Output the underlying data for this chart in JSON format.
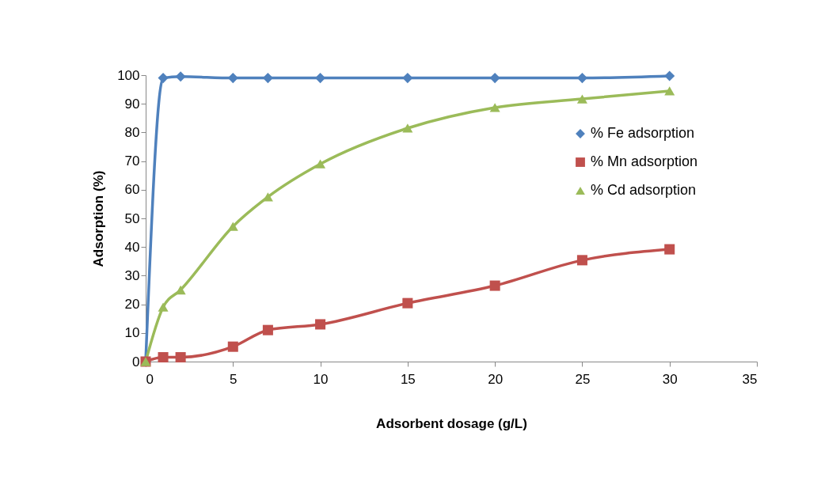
{
  "chart_data": {
    "type": "line",
    "xlabel": "Adsorbent dosage (g/L)",
    "ylabel": "Adsorption (%)",
    "x": [
      0,
      1,
      2,
      5,
      7,
      10,
      15,
      20,
      25,
      30
    ],
    "xlim": [
      0,
      35
    ],
    "xticks": [
      0,
      5,
      10,
      15,
      20,
      25,
      30,
      35
    ],
    "ylim": [
      0,
      100
    ],
    "yticks": [
      0,
      10,
      20,
      30,
      40,
      50,
      60,
      70,
      80,
      90,
      100
    ],
    "grid": false,
    "legend": "right",
    "line_style": "solid",
    "series": [
      {
        "name": "% Fe adsorption",
        "color": "#4f81bd",
        "marker": "diamond",
        "values": [
          0,
          99,
          99.5,
          99,
          99,
          99,
          99,
          99,
          99,
          99.7
        ]
      },
      {
        "name": "% Mn adsorption",
        "color": "#c0504d",
        "marker": "square",
        "values": [
          0,
          1.5,
          1.5,
          5.2,
          11,
          13,
          20.4,
          26.5,
          35.4,
          39.2
        ]
      },
      {
        "name": "% Cd adsorption",
        "color": "#9bbb59",
        "marker": "triangle",
        "values": [
          0,
          19,
          25,
          47.2,
          57.5,
          69,
          81.5,
          88.7,
          91.7,
          94.5
        ]
      }
    ]
  }
}
